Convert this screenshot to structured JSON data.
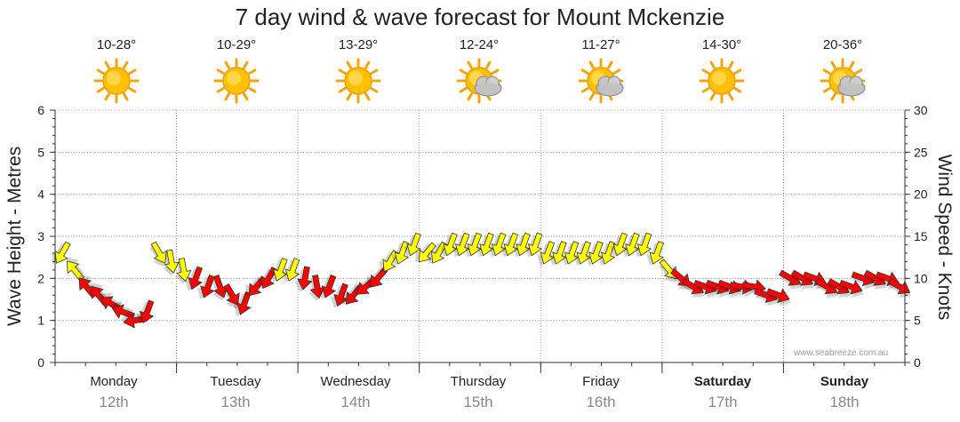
{
  "title": "7 day wind & wave forecast for Mount Mckenzie",
  "days": [
    {
      "name": "Monday",
      "date": "12th",
      "temp": "10-28°",
      "icon": "sunny-icon",
      "bold": false
    },
    {
      "name": "Tuesday",
      "date": "13th",
      "temp": "10-29°",
      "icon": "sunny-icon",
      "bold": false
    },
    {
      "name": "Wednesday",
      "date": "14th",
      "temp": "13-29°",
      "icon": "sunny-icon",
      "bold": false
    },
    {
      "name": "Thursday",
      "date": "15th",
      "temp": "12-24°",
      "icon": "partly-cloudy-icon",
      "bold": false
    },
    {
      "name": "Friday",
      "date": "16th",
      "temp": "11-27°",
      "icon": "partly-cloudy-icon",
      "bold": false
    },
    {
      "name": "Saturday",
      "date": "17th",
      "temp": "14-30°",
      "icon": "sunny-icon",
      "bold": true
    },
    {
      "name": "Sunday",
      "date": "18th",
      "temp": "20-36°",
      "icon": "partly-cloudy-icon",
      "bold": true
    }
  ],
  "colors": {
    "grid": "#999999",
    "strong_wind": "#ff0000",
    "moderate_wind": "#ffff00",
    "outline": "#333333"
  },
  "credit": "www.seabreeze.com.au",
  "chart_data": {
    "type": "line",
    "title": "7 day wind & wave forecast for Mount Mckenzie",
    "ylabel": "Wave Height - Metres",
    "y2label": "Wind Speed - Knots",
    "ylim": [
      0,
      6
    ],
    "y2lim": [
      0,
      30
    ],
    "yticks": [
      "0",
      "1",
      "2",
      "3",
      "4",
      "5",
      "6"
    ],
    "y2ticks": [
      "0",
      "5",
      "10",
      "15",
      "20",
      "25",
      "30"
    ],
    "x_unit": "days from Monday 00:00",
    "series": [
      {
        "name": "Wind speed (knots) and direction",
        "x": [
          0.0,
          0.1,
          0.2,
          0.3,
          0.4,
          0.5,
          0.6,
          0.7,
          0.8,
          0.9,
          1.0,
          1.1,
          1.2,
          1.3,
          1.4,
          1.5,
          1.6,
          1.7,
          1.8,
          1.9,
          2.0,
          2.1,
          2.2,
          2.3,
          2.4,
          2.5,
          2.6,
          2.7,
          2.8,
          2.9,
          3.0,
          3.1,
          3.2,
          3.3,
          3.4,
          3.5,
          3.6,
          3.7,
          3.8,
          3.9,
          4.0,
          4.1,
          4.2,
          4.3,
          4.4,
          4.5,
          4.6,
          4.7,
          4.8,
          4.9,
          5.0,
          5.1,
          5.2,
          5.3,
          5.4,
          5.5,
          5.6,
          5.7,
          5.8,
          5.9,
          6.0,
          6.1,
          6.2,
          6.3,
          6.4,
          6.5,
          6.6,
          6.7,
          6.8,
          6.9
        ],
        "knots": [
          13,
          11,
          9,
          8,
          7,
          6,
          5,
          6,
          13,
          12,
          11,
          10,
          9,
          9,
          8,
          7,
          9,
          10,
          11,
          11,
          10,
          9,
          9,
          8,
          8,
          9,
          10,
          12,
          13,
          14,
          13,
          13,
          14,
          14,
          14,
          14,
          14,
          14,
          14,
          14,
          13,
          13,
          13,
          13,
          13,
          13,
          14,
          14,
          14,
          13,
          11,
          10,
          9,
          9,
          9,
          9,
          9,
          9,
          8,
          8,
          10,
          10,
          10,
          9,
          9,
          9,
          10,
          10,
          10,
          9
        ],
        "direction_deg": [
          30,
          140,
          140,
          140,
          120,
          110,
          80,
          20,
          330,
          350,
          350,
          20,
          20,
          340,
          330,
          20,
          40,
          30,
          20,
          20,
          10,
          350,
          20,
          20,
          40,
          50,
          40,
          30,
          20,
          20,
          40,
          30,
          20,
          20,
          20,
          20,
          20,
          20,
          20,
          20,
          20,
          20,
          20,
          20,
          20,
          20,
          20,
          20,
          20,
          20,
          320,
          310,
          300,
          290,
          290,
          290,
          280,
          280,
          290,
          290,
          300,
          300,
          290,
          300,
          300,
          290,
          290,
          300,
          290,
          300
        ]
      }
    ]
  }
}
